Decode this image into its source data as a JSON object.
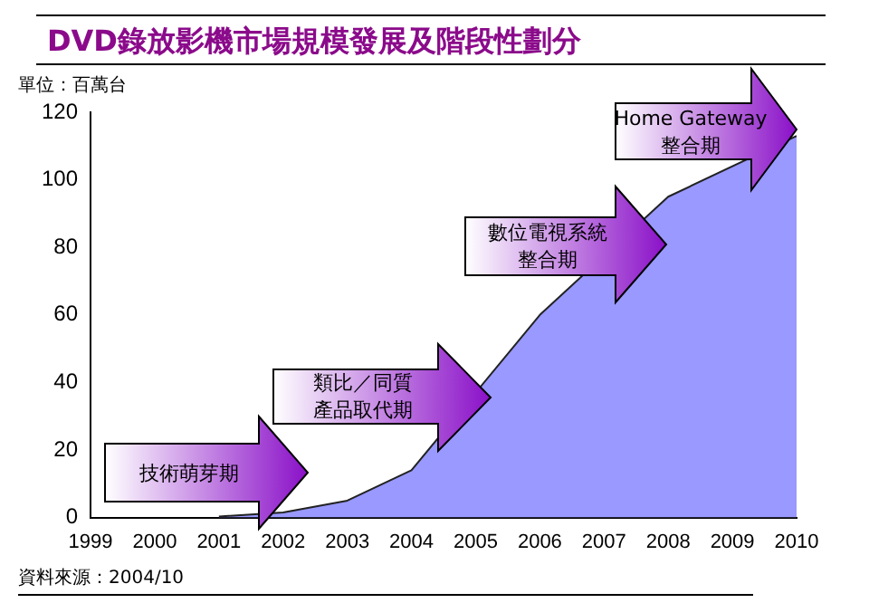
{
  "chart_data": {
    "type": "area",
    "title": "DVD錄放影機市場規模發展及階段性劃分",
    "ylabel": "單位：百萬台",
    "x": [
      2001,
      2002,
      2003,
      2004,
      2005,
      2006,
      2007,
      2008,
      2009,
      2010
    ],
    "series": [
      {
        "color": "#9999ff",
        "values": [
          0.3,
          1.5,
          5,
          14,
          null,
          60,
          null,
          95,
          null,
          113
        ]
      }
    ],
    "xlim": [
      1999,
      2010
    ],
    "xticks": [
      1999,
      2000,
      2001,
      2002,
      2003,
      2004,
      2005,
      2006,
      2007,
      2008,
      2009,
      2010
    ],
    "ylim": [
      0,
      120
    ],
    "yticks": [
      0,
      20,
      40,
      60,
      80,
      100,
      120
    ],
    "grid": false,
    "legend": false,
    "annotations": [
      "技術萌芽期",
      "類比／同質產品取代期",
      "數位電視系統整合期",
      "Home Gateway\n整合期",
      "資料來源：2004/10"
    ]
  }
}
